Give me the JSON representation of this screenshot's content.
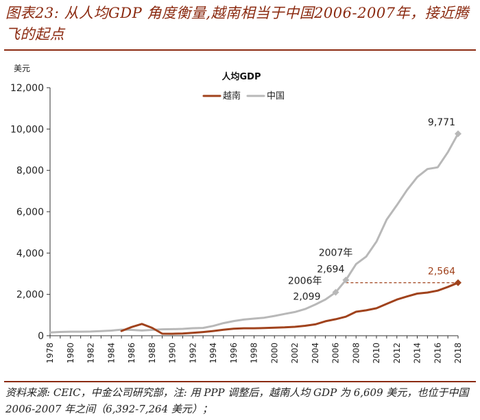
{
  "figure_title": "图表23: 从人均GDP 角度衡量,越南相当于中国2006-2007年，接近腾飞的起点",
  "source_note": "资料来源: CEIC，中金公司研究部，注: 用 PPP 调整后，越南人均 GDP 为 6,609 美元，也位于中国 2006-2007 年之间（6,392-7,264 美元）；",
  "colors": {
    "brand": "#8B2A10",
    "vietnam": "#A0421C",
    "china": "#B8B8B8",
    "axis": "#333333"
  },
  "chart_data": {
    "type": "line",
    "title": "人均GDP",
    "ylabel": "美元",
    "xlabel": "",
    "ylim": [
      0,
      12000
    ],
    "yticks": [
      0,
      2000,
      4000,
      6000,
      8000,
      10000,
      12000
    ],
    "ytick_labels": [
      "0",
      "2,000",
      "4,000",
      "6,000",
      "8,000",
      "10,000",
      "12,000"
    ],
    "xlim": [
      1978,
      2018
    ],
    "xticks": [
      1978,
      1980,
      1982,
      1984,
      1986,
      1988,
      1990,
      1992,
      1994,
      1996,
      1998,
      2000,
      2002,
      2004,
      2006,
      2008,
      2010,
      2012,
      2014,
      2016,
      2018
    ],
    "xtick_labels": [
      "1978",
      "1980",
      "1982",
      "1984",
      "1986",
      "1988",
      "1990",
      "1992",
      "1994",
      "1996",
      "1998",
      "2000",
      "2002",
      "2004",
      "2006",
      "2008",
      "2010",
      "2012",
      "2014",
      "2016",
      "2018"
    ],
    "legend": {
      "position": "top-left",
      "entries": [
        "越南",
        "中国"
      ]
    },
    "series": [
      {
        "name": "越南",
        "color": "#A0421C",
        "x": [
          1985,
          1986,
          1987,
          1988,
          1989,
          1990,
          1991,
          1992,
          1993,
          1994,
          1995,
          1996,
          1997,
          1998,
          1999,
          2000,
          2001,
          2002,
          2003,
          2004,
          2005,
          2006,
          2007,
          2008,
          2009,
          2010,
          2011,
          2012,
          2013,
          2014,
          2015,
          2016,
          2017,
          2018
        ],
        "values": [
          230,
          420,
          570,
          380,
          100,
          95,
          110,
          140,
          180,
          230,
          290,
          340,
          360,
          360,
          370,
          390,
          405,
          430,
          480,
          550,
          700,
          800,
          920,
          1160,
          1230,
          1330,
          1540,
          1750,
          1900,
          2040,
          2090,
          2180,
          2360,
          2564
        ]
      },
      {
        "name": "中国",
        "color": "#B8B8B8",
        "x": [
          1978,
          1979,
          1980,
          1981,
          1982,
          1983,
          1984,
          1985,
          1986,
          1987,
          1988,
          1989,
          1990,
          1991,
          1992,
          1993,
          1994,
          1995,
          1996,
          1997,
          1998,
          1999,
          2000,
          2001,
          2002,
          2003,
          2004,
          2005,
          2006,
          2007,
          2008,
          2009,
          2010,
          2011,
          2012,
          2013,
          2014,
          2015,
          2016,
          2017,
          2018
        ],
        "values": [
          156,
          183,
          194,
          197,
          203,
          225,
          250,
          294,
          281,
          251,
          283,
          310,
          317,
          333,
          366,
          377,
          473,
          609,
          709,
          781,
          828,
          873,
          959,
          1053,
          1148,
          1288,
          1508,
          1753,
          2099,
          2694,
          3468,
          3832,
          4550,
          5618,
          6317,
          7050,
          7678,
          8066,
          8148,
          8879,
          9771
        ]
      }
    ],
    "annotations": [
      {
        "series": "中国",
        "x": 2006,
        "y": 2099,
        "year_label": "2006年",
        "value_label": "2,099"
      },
      {
        "series": "中国",
        "x": 2007,
        "y": 2694,
        "year_label": "2007年",
        "value_label": "2,694"
      },
      {
        "series": "中国",
        "x": 2018,
        "y": 9771,
        "value_label": "9,771"
      },
      {
        "series": "越南",
        "x": 2018,
        "y": 2564,
        "value_label": "2,564"
      }
    ],
    "reference_line": {
      "style": "dashed",
      "color": "#A0421C",
      "from_x": 2007,
      "to_x": 2018,
      "y": 2564
    }
  }
}
